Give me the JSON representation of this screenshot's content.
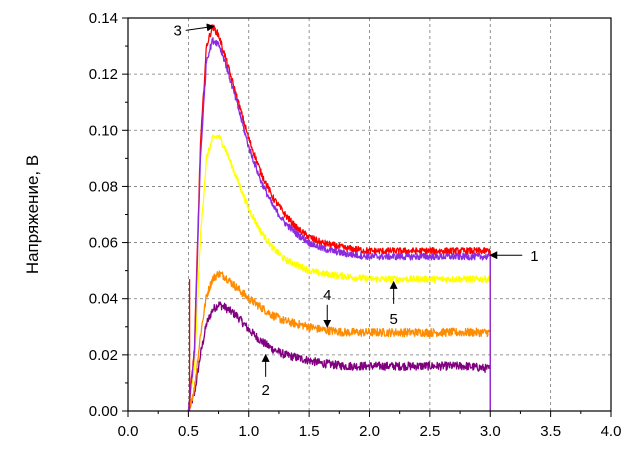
{
  "chart_data": {
    "type": "line",
    "title": "",
    "xlabel": "",
    "ylabel": "Напряжение,  В",
    "xlim": [
      0.0,
      4.0
    ],
    "ylim": [
      0.0,
      0.14
    ],
    "xticks": [
      "0.0",
      "0.5",
      "1.0",
      "1.5",
      "2.0",
      "2.5",
      "3.0",
      "3.5",
      "4.0"
    ],
    "yticks": [
      "0.00",
      "0.02",
      "0.04",
      "0.06",
      "0.08",
      "0.10",
      "0.12",
      "0.14"
    ],
    "grid": true,
    "series": [
      {
        "label": "1",
        "color": "#8a2be2",
        "noise": 0.0012,
        "x": [
          0.5,
          0.55,
          0.6,
          0.65,
          0.7,
          0.75,
          0.8,
          0.9,
          1.0,
          1.1,
          1.2,
          1.3,
          1.4,
          1.5,
          1.6,
          1.8,
          2.0,
          2.2,
          2.4,
          2.6,
          2.8,
          3.0
        ],
        "y": [
          0.0,
          0.02,
          0.09,
          0.125,
          0.132,
          0.131,
          0.125,
          0.11,
          0.094,
          0.082,
          0.073,
          0.067,
          0.063,
          0.06,
          0.058,
          0.056,
          0.055,
          0.055,
          0.055,
          0.055,
          0.055,
          0.055
        ]
      },
      {
        "label": "2",
        "color": "#800080",
        "noise": 0.0015,
        "x": [
          0.5,
          0.55,
          0.6,
          0.65,
          0.7,
          0.75,
          0.8,
          0.9,
          1.0,
          1.1,
          1.2,
          1.3,
          1.4,
          1.5,
          1.6,
          1.8,
          2.0,
          2.2,
          2.4,
          2.6,
          2.8,
          3.0
        ],
        "y": [
          0.0,
          0.006,
          0.02,
          0.031,
          0.036,
          0.038,
          0.037,
          0.034,
          0.029,
          0.025,
          0.022,
          0.02,
          0.019,
          0.018,
          0.017,
          0.016,
          0.016,
          0.016,
          0.016,
          0.016,
          0.016,
          0.015
        ]
      },
      {
        "label": "3",
        "color": "#ff0000",
        "noise": 0.0012,
        "x": [
          0.5,
          0.55,
          0.6,
          0.65,
          0.7,
          0.75,
          0.8,
          0.9,
          1.0,
          1.1,
          1.2,
          1.3,
          1.4,
          1.5,
          1.6,
          1.8,
          2.0,
          2.2,
          2.4,
          2.6,
          2.8,
          3.0
        ],
        "y": [
          0.0,
          0.022,
          0.095,
          0.13,
          0.137,
          0.134,
          0.127,
          0.112,
          0.097,
          0.085,
          0.076,
          0.07,
          0.065,
          0.062,
          0.06,
          0.058,
          0.057,
          0.057,
          0.057,
          0.057,
          0.057,
          0.057
        ]
      },
      {
        "label": "4",
        "color": "#ff8c00",
        "noise": 0.0015,
        "x": [
          0.5,
          0.55,
          0.6,
          0.65,
          0.7,
          0.75,
          0.8,
          0.9,
          1.0,
          1.1,
          1.2,
          1.3,
          1.4,
          1.5,
          1.6,
          1.8,
          2.0,
          2.2,
          2.4,
          2.6,
          2.8,
          3.0
        ],
        "y": [
          0.0,
          0.008,
          0.027,
          0.041,
          0.047,
          0.049,
          0.048,
          0.044,
          0.04,
          0.037,
          0.034,
          0.032,
          0.031,
          0.03,
          0.029,
          0.028,
          0.028,
          0.028,
          0.028,
          0.028,
          0.028,
          0.028
        ]
      },
      {
        "label": "5",
        "color": "#ffff00",
        "noise": 0.0012,
        "x": [
          0.5,
          0.55,
          0.6,
          0.65,
          0.7,
          0.75,
          0.8,
          0.9,
          1.0,
          1.1,
          1.2,
          1.3,
          1.4,
          1.5,
          1.6,
          1.8,
          2.0,
          2.2,
          2.4,
          2.6,
          2.8,
          3.0
        ],
        "y": [
          0.0,
          0.015,
          0.062,
          0.09,
          0.097,
          0.098,
          0.094,
          0.083,
          0.072,
          0.064,
          0.058,
          0.054,
          0.052,
          0.05,
          0.049,
          0.048,
          0.047,
          0.047,
          0.047,
          0.047,
          0.047,
          0.047
        ]
      }
    ],
    "annotations": [
      {
        "text": "1",
        "target": [
          3.0,
          0.0555
        ]
      },
      {
        "text": "2",
        "target": [
          1.14,
          0.02
        ]
      },
      {
        "text": "3",
        "target": [
          0.71,
          0.137
        ]
      },
      {
        "text": "4",
        "target": [
          1.65,
          0.03
        ]
      },
      {
        "text": "5",
        "target": [
          2.2,
          0.046
        ]
      }
    ]
  }
}
